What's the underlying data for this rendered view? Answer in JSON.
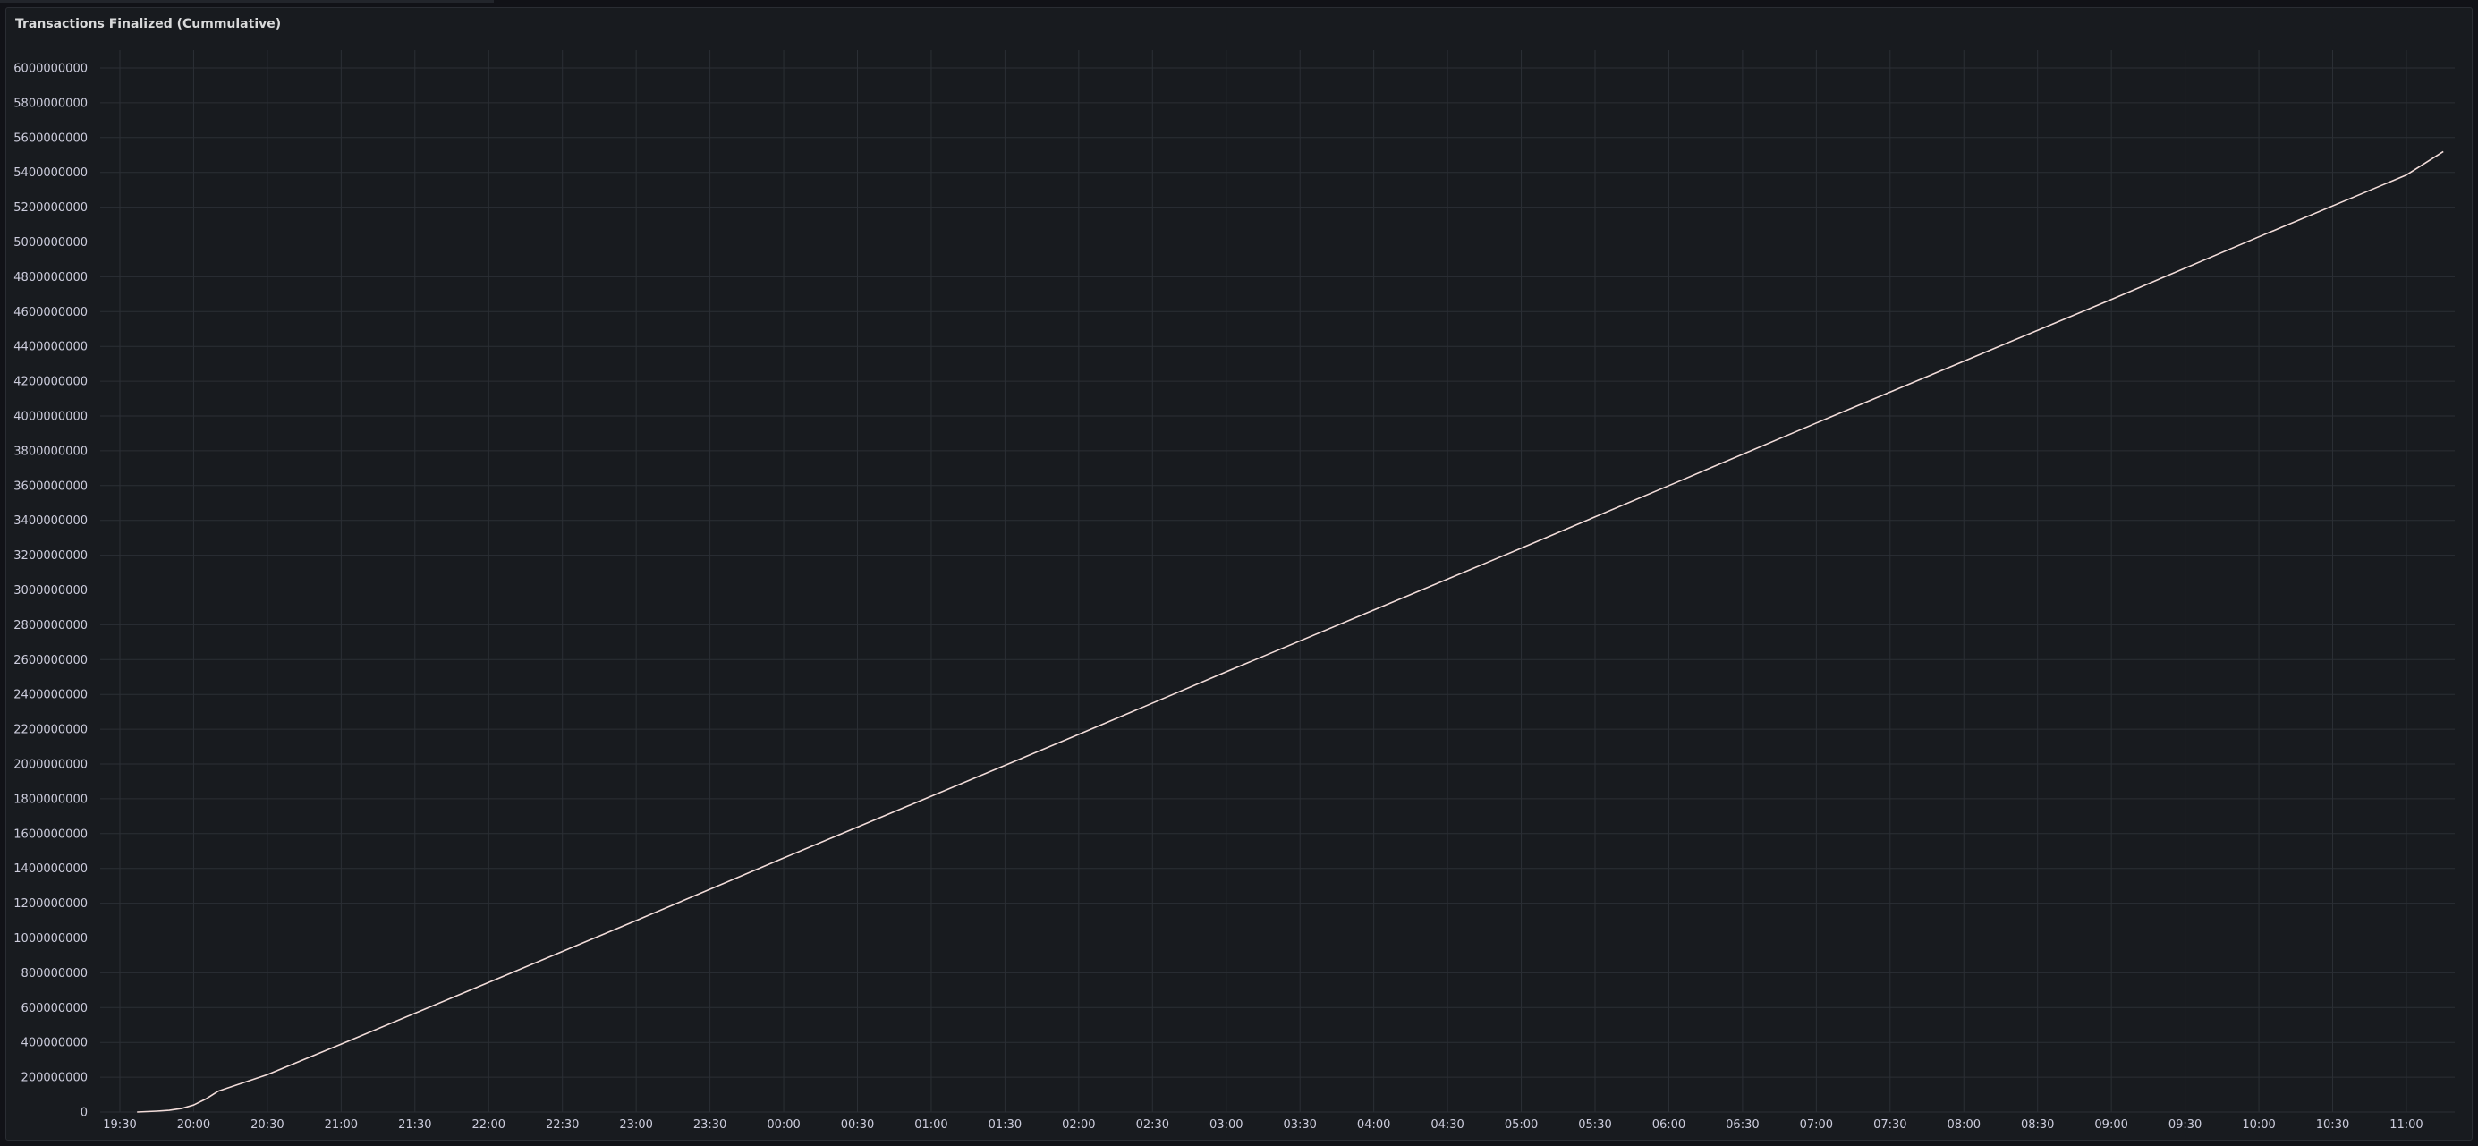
{
  "panel": {
    "title": "Transactions Finalized (Cummulative)"
  },
  "chart_data": {
    "type": "line",
    "title": "Transactions Finalized (Cummulative)",
    "xlabel": "",
    "ylabel": "",
    "ylim": [
      0,
      6000000000
    ],
    "yticks": [
      0,
      200000000,
      400000000,
      600000000,
      800000000,
      1000000000,
      1200000000,
      1400000000,
      1600000000,
      1800000000,
      2000000000,
      2200000000,
      2400000000,
      2600000000,
      2800000000,
      3000000000,
      3200000000,
      3400000000,
      3600000000,
      3800000000,
      4000000000,
      4200000000,
      4400000000,
      4600000000,
      4800000000,
      5000000000,
      5200000000,
      5400000000,
      5600000000,
      5800000000,
      6000000000
    ],
    "xtick_labels": [
      "19:30",
      "20:00",
      "20:30",
      "21:00",
      "21:30",
      "22:00",
      "22:30",
      "23:00",
      "23:30",
      "00:00",
      "00:30",
      "01:00",
      "01:30",
      "02:00",
      "02:30",
      "03:00",
      "03:30",
      "04:00",
      "04:30",
      "05:00",
      "05:30",
      "06:00",
      "06:30",
      "07:00",
      "07:30",
      "08:00",
      "08:30",
      "09:00",
      "09:30",
      "10:00",
      "10:30",
      "11:00"
    ],
    "grid": true,
    "legend": "none",
    "series": [
      {
        "color": "#f2dcd9",
        "points": [
          [
            "19:37",
            0
          ],
          [
            "19:45",
            5000000
          ],
          [
            "19:50",
            10000000
          ],
          [
            "19:55",
            20000000
          ],
          [
            "20:00",
            40000000
          ],
          [
            "20:05",
            75000000
          ],
          [
            "20:10",
            120000000
          ],
          [
            "20:30",
            215000000
          ],
          [
            "21:00",
            390000000
          ],
          [
            "22:00",
            745000000
          ],
          [
            "23:00",
            1100000000
          ],
          [
            "00:00",
            1460000000
          ],
          [
            "01:00",
            1815000000
          ],
          [
            "02:00",
            2170000000
          ],
          [
            "03:00",
            2530000000
          ],
          [
            "04:00",
            2885000000
          ],
          [
            "05:00",
            3240000000
          ],
          [
            "06:00",
            3600000000
          ],
          [
            "07:00",
            3960000000
          ],
          [
            "08:00",
            4315000000
          ],
          [
            "09:00",
            4670000000
          ],
          [
            "10:00",
            5030000000
          ],
          [
            "11:00",
            5385000000
          ],
          [
            "11:15",
            5520000000
          ]
        ]
      }
    ]
  }
}
